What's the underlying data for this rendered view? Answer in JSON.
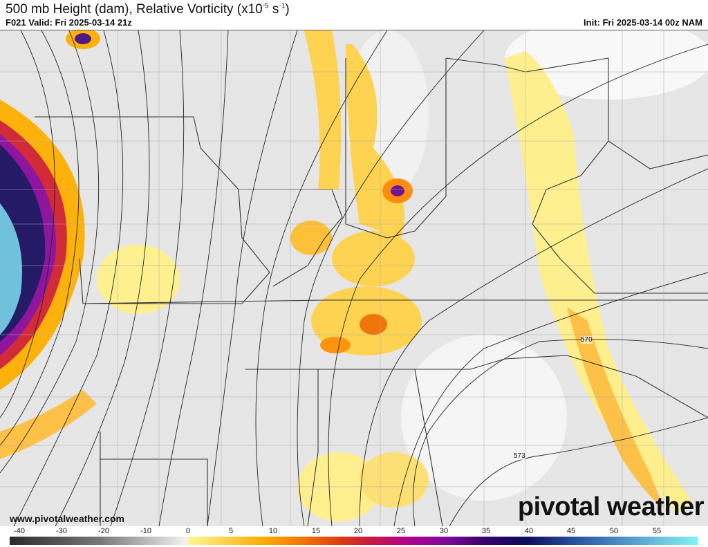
{
  "header": {
    "title": "500 mb Height (dam), Relative Vorticity (x10",
    "title_exp1": "-5",
    "title_mid": " s",
    "title_exp2": "-1",
    "title_end": ")",
    "valid": "F021 Valid: Fri 2025-03-14 21z",
    "init": "Init: Fri 2025-03-14 00z NAM"
  },
  "map": {
    "contour_labels": [
      "570",
      "573"
    ]
  },
  "footer": {
    "website": "www.pivotalweather.com",
    "logo": "pivotal weather"
  },
  "colorbar": {
    "ticks": [
      "-40",
      "-30",
      "-20",
      "-10",
      "0",
      "5",
      "10",
      "15",
      "20",
      "25",
      "30",
      "35",
      "40",
      "45",
      "50",
      "55"
    ],
    "units": "x10^-5 s^-1",
    "colors": {
      "negative": "#777777",
      "zero": "#fff68f",
      "low": "#ffd24a",
      "mid": "#f27000",
      "high": "#b00090",
      "very_high": "#0c0c5c",
      "max": "#80f4f4"
    }
  }
}
